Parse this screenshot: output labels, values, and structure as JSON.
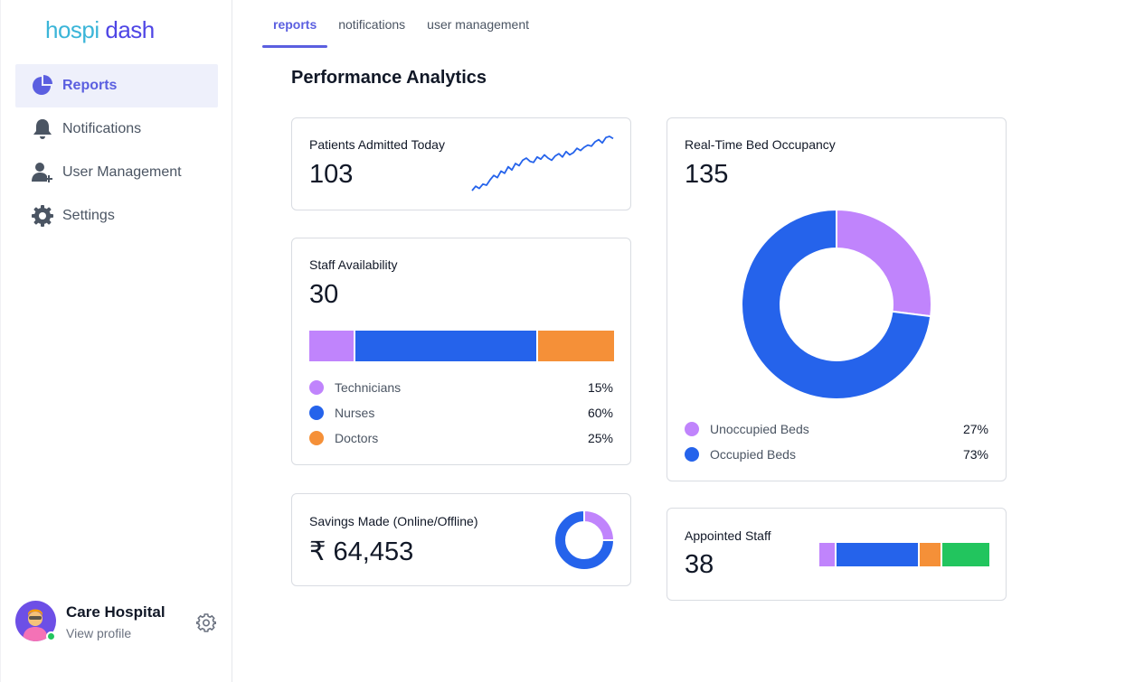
{
  "brand": {
    "part1": "hospi",
    "part2": "dash"
  },
  "sidebar": {
    "items": [
      {
        "label": "Reports",
        "icon": "pie-chart-icon",
        "active": true
      },
      {
        "label": "Notifications",
        "icon": "bell-icon",
        "active": false
      },
      {
        "label": "User Management",
        "icon": "user-plus-icon",
        "active": false
      },
      {
        "label": "Settings",
        "icon": "gear-icon",
        "active": false
      }
    ]
  },
  "profile": {
    "name": "Care Hospital",
    "link": "View profile"
  },
  "tabs": [
    {
      "label": "reports",
      "active": true
    },
    {
      "label": "notifications",
      "active": false
    },
    {
      "label": "user management",
      "active": false
    }
  ],
  "page": {
    "title": "Performance Analytics"
  },
  "colors": {
    "accent": "#5b5fe0",
    "purple": "#c084fc",
    "blue": "#2563eb",
    "orange": "#f59038",
    "green": "#22c55e"
  },
  "cards": {
    "patients": {
      "title": "Patients Admitted Today",
      "value": "103"
    },
    "staff": {
      "title": "Staff Availability",
      "value": "30",
      "legend": [
        {
          "label": "Technicians",
          "value": "15%",
          "color": "#c084fc"
        },
        {
          "label": "Nurses",
          "value": "60%",
          "color": "#2563eb"
        },
        {
          "label": "Doctors",
          "value": "25%",
          "color": "#f59038"
        }
      ]
    },
    "savings": {
      "title": "Savings Made (Online/Offline)",
      "value": "₹ 64,453"
    },
    "beds": {
      "title": "Real-Time Bed Occupancy",
      "value": "135",
      "legend": [
        {
          "label": "Unoccupied Beds",
          "value": "27%",
          "color": "#c084fc"
        },
        {
          "label": "Occupied Beds",
          "value": "73%",
          "color": "#2563eb"
        }
      ]
    },
    "appointed": {
      "title": "Appointed Staff",
      "value": "38"
    }
  },
  "chart_data": [
    {
      "type": "line",
      "title": "",
      "x": [
        0,
        1,
        2,
        3,
        4,
        5,
        6,
        7,
        8,
        9,
        10,
        11,
        12,
        13,
        14,
        15,
        16,
        17,
        18,
        19,
        20,
        21,
        22,
        23,
        24,
        25,
        26,
        27,
        28,
        29,
        30,
        31,
        32,
        33,
        34,
        35,
        36,
        37,
        38,
        39
      ],
      "series": [
        {
          "values": [
            8,
            12,
            10,
            14,
            13,
            18,
            22,
            20,
            26,
            24,
            30,
            27,
            33,
            31,
            36,
            38,
            35,
            34,
            39,
            37,
            41,
            38,
            36,
            40,
            42,
            39,
            44,
            41,
            43,
            47,
            45,
            48,
            50,
            49,
            53,
            55,
            52,
            57,
            58,
            56
          ]
        }
      ],
      "color": "#2563eb"
    },
    {
      "type": "bar",
      "title": "",
      "stacked": true,
      "categories": [
        "Technicians",
        "Nurses",
        "Doctors"
      ],
      "values": [
        15,
        60,
        25
      ],
      "colors": [
        "#c084fc",
        "#2563eb",
        "#f59038"
      ]
    },
    {
      "type": "pie",
      "title": "",
      "donut": true,
      "categories": [
        "Unoccupied Beds",
        "Occupied Beds"
      ],
      "values": [
        27,
        73
      ],
      "colors": [
        "#c084fc",
        "#2563eb"
      ]
    },
    {
      "type": "pie",
      "title": "",
      "donut": true,
      "values": [
        25,
        75
      ],
      "colors": [
        "#c084fc",
        "#2563eb"
      ]
    },
    {
      "type": "bar",
      "title": "",
      "stacked": true,
      "values": [
        10,
        48,
        13,
        27
      ],
      "colors": [
        "#c084fc",
        "#2563eb",
        "#f59038",
        "#22c55e"
      ]
    }
  ]
}
